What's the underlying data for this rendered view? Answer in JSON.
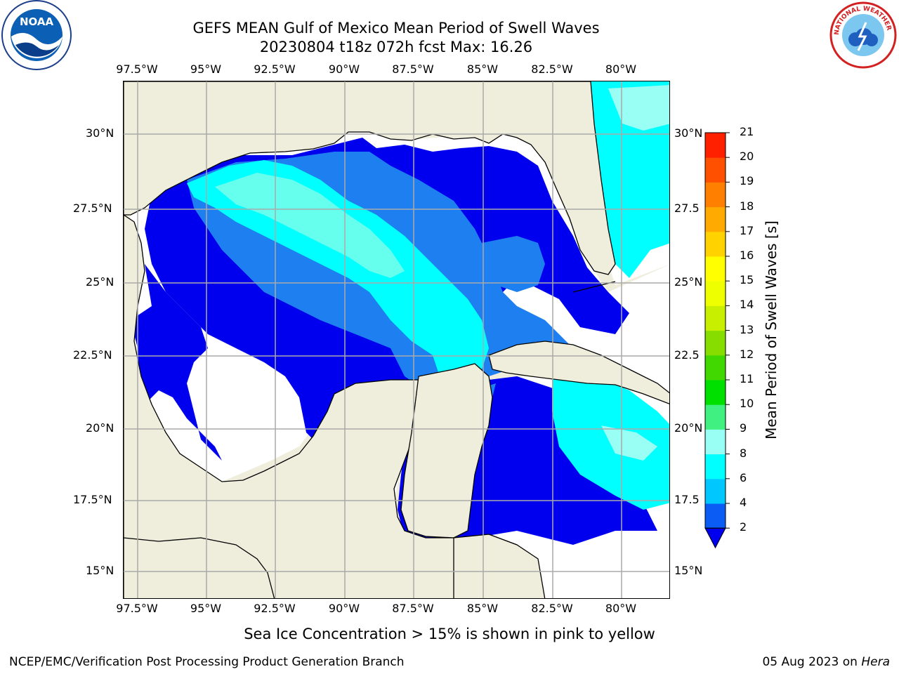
{
  "header": {
    "title_line1": "GEFS MEAN Gulf of Mexico Mean Period of Swell Waves",
    "title_line2": "20230804 t18z 072h fcst   Max: 16.26"
  },
  "map": {
    "lon_ticks": [
      "97.5°W",
      "95°W",
      "92.5°W",
      "90°W",
      "87.5°W",
      "85°W",
      "82.5°W",
      "80°W"
    ],
    "lat_ticks_left": [
      "30°N",
      "27.5°N",
      "25°N",
      "22.5°N",
      "20°N",
      "17.5°N",
      "15°N"
    ],
    "lat_ticks_right": [
      "30°N",
      "27.5",
      "25°N",
      "22.5",
      "20°N",
      "17.5",
      "15°N"
    ],
    "colors": {
      "land": "#efeedd",
      "water_white": "#ffffff",
      "band_2_4": "#0000ee",
      "band_4_6": "#1e7ff0",
      "band_6_8": "#00ffff",
      "band_8_9": "#66ffee",
      "band_14_16": "#ffee00",
      "grid": "#aaaaaa"
    }
  },
  "colorbar": {
    "title": "Mean Period of Swell Waves [s]",
    "levels": [
      "2",
      "4",
      "6",
      "8",
      "9",
      "10",
      "11",
      "12",
      "13",
      "14",
      "15",
      "16",
      "17",
      "18",
      "19",
      "20",
      "21"
    ],
    "colors": [
      "#0a5cf5",
      "#00c8ff",
      "#00ffff",
      "#99fff4",
      "#40f080",
      "#00e000",
      "#40d800",
      "#88dd00",
      "#c8ee00",
      "#eeff00",
      "#ffff00",
      "#ffd200",
      "#ffaa00",
      "#ff8000",
      "#ff5000",
      "#ff2000"
    ],
    "underflow_color": "#0000ee"
  },
  "footer": {
    "note": "Sea Ice Concentration > 15% is shown in pink to yellow",
    "credit_left": "NCEP/EMC/Verification Post Processing Product Generation Branch",
    "credit_right_date": "05 Aug 2023 on ",
    "credit_right_host": "Hera"
  },
  "logos": {
    "noaa_text": "NOAA",
    "nws_text": "NATIONAL WEATHER SERVICE"
  }
}
